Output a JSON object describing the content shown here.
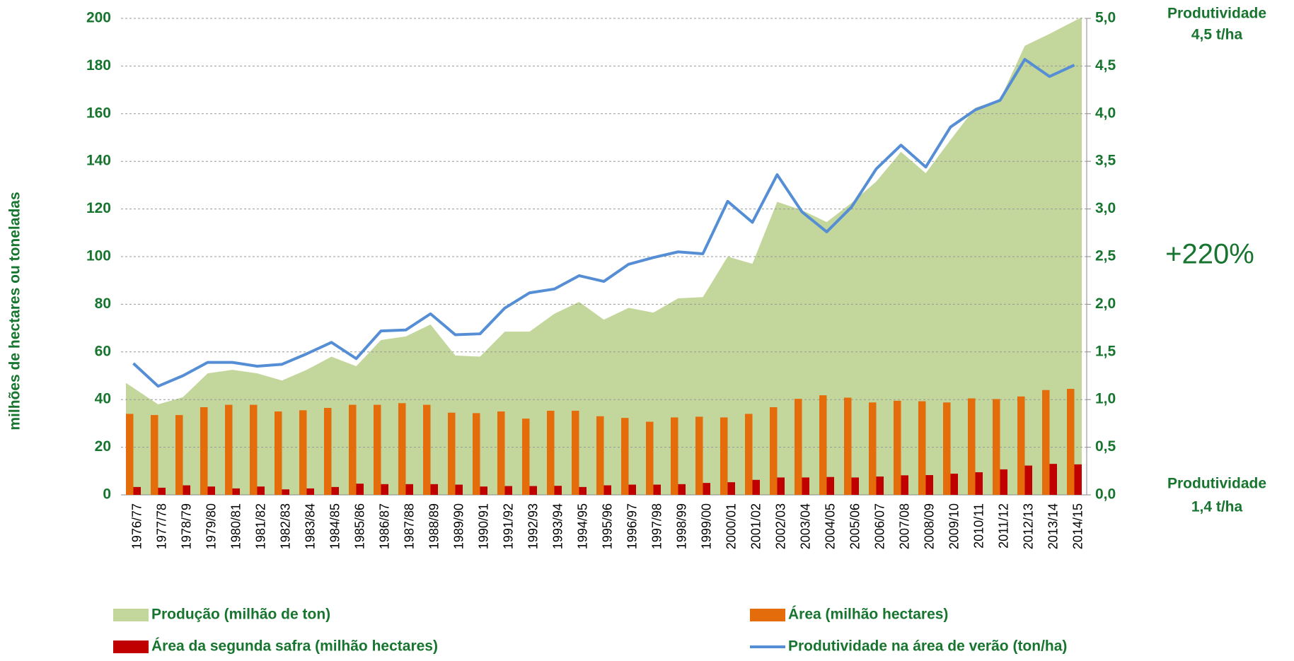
{
  "chart_data": {
    "type": "bar",
    "y_label": "milhões de hectares ou toneladas",
    "annotations": [
      "Produtividade",
      "4,5 t/ha",
      "+220%",
      "Produtividade",
      "1,4  t/ha"
    ],
    "categories": [
      "1976/77",
      "1977/78",
      "1978/79",
      "1979/80",
      "1980/81",
      "1981/82",
      "1982/83",
      "1983/84",
      "1984/85",
      "1985/86",
      "1986/87",
      "1987/88",
      "1988/89",
      "1989/90",
      "1990/91",
      "1991/92",
      "1992/93",
      "1993/94",
      "1994/95",
      "1995/96",
      "1996/97",
      "1997/98",
      "1998/99",
      "1999/00",
      "2000/01",
      "2001/02",
      "2002/03",
      "2003/04",
      "2004/05",
      "2005/06",
      "2006/07",
      "2007/08",
      "2008/09",
      "2009/10",
      "2010/11",
      "2011/12",
      "2012/13",
      "2013/14",
      "2014/15"
    ],
    "series": [
      {
        "name": "Produção (milhão de ton)",
        "color": "#c3d69b",
        "kind": "area",
        "values": [
          47,
          38,
          41,
          51,
          52.5,
          51,
          48,
          52.5,
          58,
          54,
          65,
          66.5,
          71.5,
          58.5,
          58,
          68.5,
          68.5,
          76,
          81,
          73.5,
          78.5,
          76.5,
          82.5,
          83,
          100,
          97,
          123,
          119.5,
          114.5,
          122.5,
          131.5,
          144,
          135,
          149,
          162.5,
          166,
          188.5,
          193.5,
          200.5
        ]
      },
      {
        "name": "Área (milhão hectares)",
        "color": "#e46c0a",
        "kind": "bar",
        "values": [
          34,
          33.5,
          33.5,
          36.8,
          37.8,
          37.8,
          35,
          35.5,
          36.5,
          37.8,
          37.8,
          38.5,
          37.8,
          34.5,
          34.3,
          35,
          32,
          35.3,
          35.3,
          33,
          32.3,
          30.7,
          32.5,
          32.8,
          32.5,
          34,
          36.8,
          40.3,
          41.8,
          40.8,
          38.8,
          39.5,
          39.3,
          38.8,
          40.5,
          40.2,
          41.3,
          44,
          44.5
        ]
      },
      {
        "name": "Área da segunda safra (milhão hectares)",
        "color": "#c00000",
        "kind": "bar",
        "values": [
          3.3,
          3,
          4,
          3.5,
          2.7,
          3.5,
          2.3,
          2.7,
          3.3,
          4.7,
          4.5,
          4.5,
          4.5,
          4.3,
          3.5,
          3.7,
          3.7,
          3.8,
          3.3,
          4,
          4.3,
          4.3,
          4.5,
          5,
          5.3,
          6.3,
          7.3,
          7.3,
          7.5,
          7.3,
          7.7,
          8.2,
          8.3,
          8.9,
          9.5,
          10.7,
          12.3,
          13,
          12.8
        ]
      },
      {
        "name": "Produtividade na área de verão (ton/ha)",
        "color": "#558ed5",
        "kind": "line",
        "axis": "y2",
        "values": [
          1.38,
          1.14,
          1.25,
          1.39,
          1.39,
          1.35,
          1.37,
          1.48,
          1.6,
          1.43,
          1.72,
          1.73,
          1.9,
          1.68,
          1.69,
          1.96,
          2.12,
          2.16,
          2.3,
          2.24,
          2.42,
          2.49,
          2.55,
          2.53,
          3.08,
          2.86,
          3.36,
          2.97,
          2.76,
          3.02,
          3.42,
          3.67,
          3.44,
          3.86,
          4.04,
          4.14,
          4.57,
          4.39,
          4.51
        ]
      }
    ],
    "ylim": [
      0,
      200
    ],
    "yticks": [
      0,
      20,
      40,
      60,
      80,
      100,
      120,
      140,
      160,
      180,
      200
    ],
    "y2lim": [
      0,
      5
    ],
    "y2ticks": [
      {
        "value": 0,
        "label": "0,0"
      },
      {
        "value": 0.5,
        "label": "0,5"
      },
      {
        "value": 1,
        "label": "1,0"
      },
      {
        "value": 1.5,
        "label": "1,5"
      },
      {
        "value": 2,
        "label": "2,0"
      },
      {
        "value": 2.5,
        "label": "2,5"
      },
      {
        "value": 3,
        "label": "3,0"
      },
      {
        "value": 3.5,
        "label": "3,5"
      },
      {
        "value": 4,
        "label": "4,0"
      },
      {
        "value": 4.5,
        "label": "4,5"
      },
      {
        "value": 5,
        "label": "5,0"
      }
    ],
    "grid": true
  }
}
